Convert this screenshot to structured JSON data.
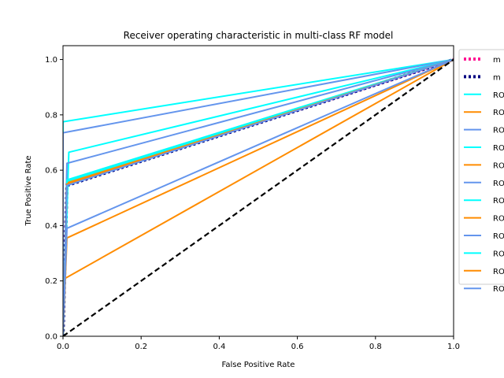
{
  "chart_data": {
    "type": "line",
    "title": "Receiver operating characteristic in multi-class RF model",
    "xlabel": "False Positive Rate",
    "ylabel": "True Positive Rate",
    "xlim": [
      0.0,
      1.0
    ],
    "ylim": [
      0.0,
      1.05
    ],
    "xticks": [
      "0.0",
      "0.2",
      "0.4",
      "0.6",
      "0.8",
      "1.0"
    ],
    "yticks": [
      "0.0",
      "0.2",
      "0.4",
      "0.6",
      "0.8",
      "1.0"
    ],
    "grid": false,
    "legend_placement": "outside-top-right",
    "series": [
      {
        "name": "m",
        "color": "#ff1493",
        "style": "dotted",
        "x": [
          0.0,
          0.0,
          0.01,
          1.0
        ],
        "y": [
          0.0,
          0.05,
          0.55,
          1.0
        ]
      },
      {
        "name": "m",
        "color": "#000080",
        "style": "dotted",
        "x": [
          0.0,
          0.01,
          1.0
        ],
        "y": [
          0.0,
          0.545,
          1.0
        ]
      },
      {
        "name": "RO",
        "color": "#00ffff",
        "style": "solid",
        "x": [
          0.0,
          0.0,
          1.0
        ],
        "y": [
          0.0,
          0.775,
          1.0
        ]
      },
      {
        "name": "RO",
        "color": "#ff8c00",
        "style": "solid",
        "x": [
          0.0,
          0.0,
          1.0
        ],
        "y": [
          0.0,
          0.205,
          1.0
        ]
      },
      {
        "name": "RO",
        "color": "#6495ed",
        "style": "solid",
        "x": [
          0.0,
          0.0,
          1.0
        ],
        "y": [
          0.0,
          0.735,
          1.0
        ]
      },
      {
        "name": "RO",
        "color": "#00ffff",
        "style": "solid",
        "x": [
          0.0,
          0.015,
          1.0
        ],
        "y": [
          0.0,
          0.665,
          1.0
        ]
      },
      {
        "name": "RO",
        "color": "#ff8c00",
        "style": "solid",
        "x": [
          0.0,
          0.01,
          1.0
        ],
        "y": [
          0.0,
          0.355,
          1.0
        ]
      },
      {
        "name": "RO",
        "color": "#6495ed",
        "style": "solid",
        "x": [
          0.0,
          0.01,
          1.0
        ],
        "y": [
          0.0,
          0.625,
          1.0
        ]
      },
      {
        "name": "RO",
        "color": "#00ffff",
        "style": "solid",
        "x": [
          0.0,
          0.01,
          1.0
        ],
        "y": [
          0.0,
          0.565,
          1.0
        ]
      },
      {
        "name": "RO",
        "color": "#ff8c00",
        "style": "solid",
        "x": [
          0.0,
          0.01,
          1.0
        ],
        "y": [
          0.0,
          0.555,
          1.0
        ]
      },
      {
        "name": "RO",
        "color": "#6495ed",
        "style": "solid",
        "x": [
          0.0,
          0.01,
          1.0
        ],
        "y": [
          0.0,
          0.39,
          1.0
        ]
      },
      {
        "name": "RO",
        "color": "#00ffff",
        "style": "solid",
        "x": [
          0.0,
          0.01,
          1.0
        ],
        "y": [
          0.0,
          0.56,
          1.0
        ]
      },
      {
        "name": "RO",
        "color": "#ff8c00",
        "style": "solid",
        "x": [
          0.0,
          0.01,
          1.0
        ],
        "y": [
          0.0,
          0.55,
          1.0
        ]
      },
      {
        "name": "RO",
        "color": "#6495ed",
        "style": "solid",
        "x": [
          0.0,
          0.01,
          1.0
        ],
        "y": [
          0.0,
          0.545,
          1.0
        ]
      }
    ],
    "reference_line": {
      "color": "#000000",
      "style": "dashed",
      "x": [
        0.0,
        1.0
      ],
      "y": [
        0.0,
        1.0
      ]
    }
  }
}
